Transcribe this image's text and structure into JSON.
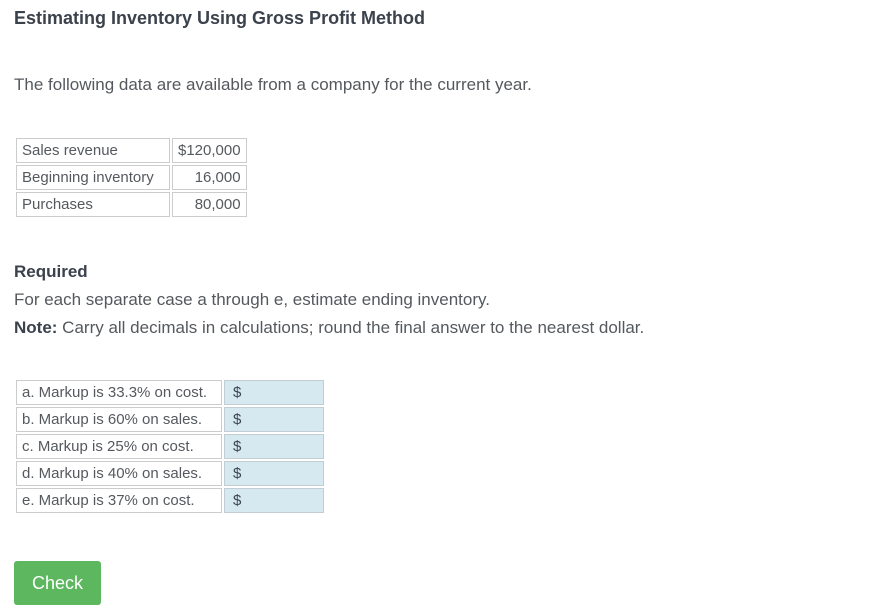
{
  "page": {
    "title": "Estimating Inventory Using Gross Profit Method",
    "intro": "The following data are available from a company for the current year."
  },
  "data_table": {
    "rows": [
      {
        "label": "Sales revenue",
        "value": "$120,000"
      },
      {
        "label": "Beginning inventory",
        "value": "16,000"
      },
      {
        "label": "Purchases",
        "value": "80,000"
      }
    ]
  },
  "required": {
    "heading": "Required",
    "instruction": "For each separate case a through e, estimate ending inventory.",
    "note_label": "Note:",
    "note_text": " Carry all decimals in calculations; round the final answer to the nearest dollar."
  },
  "answer_table": {
    "rows": [
      {
        "key": "a",
        "label": "a. Markup is 33.3% on cost.",
        "prefix": "$",
        "value": ""
      },
      {
        "key": "b",
        "label": "b. Markup is 60% on sales.",
        "prefix": "$",
        "value": ""
      },
      {
        "key": "c",
        "label": "c. Markup is 25% on cost.",
        "prefix": "$",
        "value": ""
      },
      {
        "key": "d",
        "label": "d. Markup is 40% on sales.",
        "prefix": "$",
        "value": ""
      },
      {
        "key": "e",
        "label": "e. Markup is 37% on cost.",
        "prefix": "$",
        "value": ""
      }
    ]
  },
  "actions": {
    "check_label": "Check"
  },
  "colors": {
    "accent_green": "#5cb75f",
    "input_cell_bg": "#d6e9f0",
    "table_border": "#cccccc",
    "heading_text": "#3b424c",
    "body_text": "#55595e"
  }
}
